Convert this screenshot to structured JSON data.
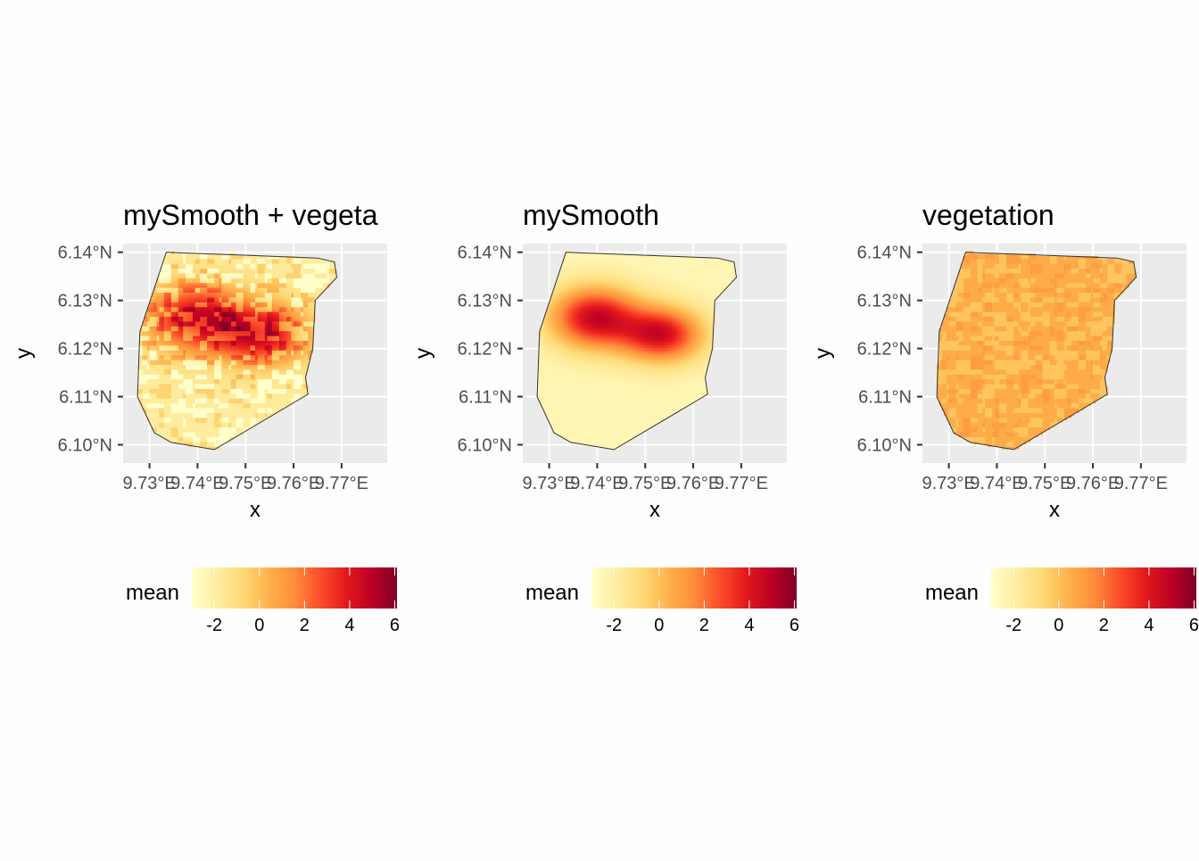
{
  "chart_data": [
    {
      "type": "heatmap",
      "title": "mySmooth + vegeta",
      "xlabel": "x",
      "ylabel": "y",
      "x_tick_labels": [
        "9.73°E",
        "9.74°E",
        "9.75°E",
        "9.76°E",
        "9.77°E"
      ],
      "x_ticks": [
        9.73,
        9.74,
        9.75,
        9.76,
        9.77
      ],
      "y_tick_labels": [
        "6.10°N",
        "6.11°N",
        "6.12°N",
        "6.13°N",
        "6.14°N"
      ],
      "y_ticks": [
        6.1,
        6.11,
        6.12,
        6.13,
        6.14
      ],
      "xlim": [
        9.7245,
        9.7795
      ],
      "ylim": [
        6.0962,
        6.1418
      ],
      "legend": {
        "title": "mean",
        "position": "bottom",
        "ticks": [
          "-2",
          "0",
          "2",
          "4",
          "6"
        ],
        "range": [
          -3,
          6.1
        ]
      },
      "field": {
        "hotspots": [
          {
            "x": 9.7395,
            "y": 6.1265,
            "sx": 0.0075,
            "sy": 0.005,
            "value": 5.2
          },
          {
            "x": 9.7535,
            "y": 6.123,
            "sx": 0.007,
            "sy": 0.0045,
            "value": 5.0
          }
        ],
        "background": -1.8,
        "texture": 2.0
      }
    },
    {
      "type": "heatmap",
      "title": "mySmooth",
      "xlabel": "x",
      "ylabel": "y",
      "x_tick_labels": [
        "9.73°E",
        "9.74°E",
        "9.75°E",
        "9.76°E",
        "9.77°E"
      ],
      "x_ticks": [
        9.73,
        9.74,
        9.75,
        9.76,
        9.77
      ],
      "y_tick_labels": [
        "6.10°N",
        "6.11°N",
        "6.12°N",
        "6.13°N",
        "6.14°N"
      ],
      "y_ticks": [
        6.1,
        6.11,
        6.12,
        6.13,
        6.14
      ],
      "xlim": [
        9.7245,
        9.7795
      ],
      "ylim": [
        6.0962,
        6.1418
      ],
      "legend": {
        "title": "mean",
        "position": "bottom",
        "ticks": [
          "-2",
          "0",
          "2",
          "4",
          "6"
        ],
        "range": [
          -3,
          6.1
        ]
      },
      "field": {
        "hotspots": [
          {
            "x": 9.7395,
            "y": 6.1265,
            "sx": 0.0065,
            "sy": 0.0045,
            "value": 5.6
          },
          {
            "x": 9.7535,
            "y": 6.123,
            "sx": 0.006,
            "sy": 0.004,
            "value": 5.2
          }
        ],
        "background": -2.4,
        "texture": 0
      }
    },
    {
      "type": "heatmap",
      "title": "vegetation",
      "xlabel": "x",
      "ylabel": "y",
      "x_tick_labels": [
        "9.73°E",
        "9.74°E",
        "9.75°E",
        "9.76°E",
        "9.77°E"
      ],
      "x_ticks": [
        9.73,
        9.74,
        9.75,
        9.76,
        9.77
      ],
      "y_tick_labels": [
        "6.10°N",
        "6.11°N",
        "6.12°N",
        "6.13°N",
        "6.14°N"
      ],
      "y_ticks": [
        6.1,
        6.11,
        6.12,
        6.13,
        6.14
      ],
      "xlim": [
        9.7245,
        9.7795
      ],
      "ylim": [
        6.0962,
        6.1418
      ],
      "legend": {
        "title": "mean",
        "position": "bottom",
        "ticks": [
          "-2",
          "0",
          "2",
          "4",
          "6"
        ],
        "range": [
          -3,
          6.1
        ]
      },
      "field": {
        "hotspots": [],
        "background": 0.6,
        "texture": 0.7
      }
    }
  ],
  "boundary": {
    "lon": [
      9.7335,
      9.765,
      9.7685,
      9.769,
      9.7645,
      9.764,
      9.7625,
      9.763,
      9.7435,
      9.7345,
      9.731,
      9.7275,
      9.728,
      9.7335
    ],
    "lat": [
      6.14,
      6.1388,
      6.138,
      6.1348,
      6.13,
      6.12,
      6.114,
      6.1105,
      6.099,
      6.1005,
      6.1025,
      6.11,
      6.1235,
      6.14
    ]
  },
  "colors": {
    "palette": [
      "#ffffcc",
      "#ffeda0",
      "#fed976",
      "#feb24c",
      "#fd8d3c",
      "#fc4e2a",
      "#e31a1c",
      "#bd0026",
      "#800026"
    ],
    "panel_background": "#ebebeb",
    "gridline": "#ffffff"
  }
}
